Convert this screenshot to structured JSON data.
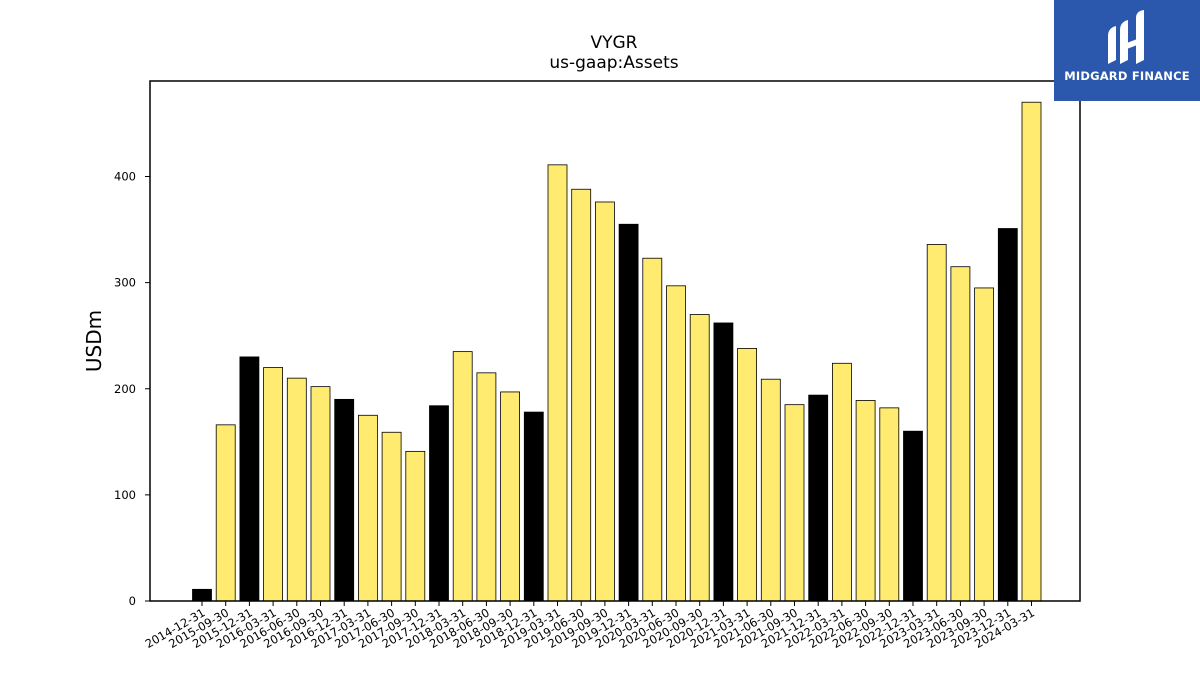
{
  "brand": {
    "name": "MIDGARD FINANCE",
    "bg_color": "#2b58ad"
  },
  "chart_data": {
    "type": "bar",
    "title": "VYGR",
    "subtitle": "us-gaap:Assets",
    "xlabel": "",
    "ylabel": "USDm",
    "ylim": [
      0,
      490
    ],
    "yticks": [
      0,
      100,
      200,
      300,
      400
    ],
    "grid": false,
    "legend": "none",
    "colors": {
      "annual": "#000000",
      "quarterly": "#ffeb70",
      "edge": "#000000"
    },
    "categories": [
      "2014-12-31",
      "2015-09-30",
      "2015-12-31",
      "2016-03-31",
      "2016-06-30",
      "2016-09-30",
      "2016-12-31",
      "2017-03-31",
      "2017-06-30",
      "2017-09-30",
      "2017-12-31",
      "2018-03-31",
      "2018-06-30",
      "2018-09-30",
      "2018-12-31",
      "2019-03-31",
      "2019-06-30",
      "2019-09-30",
      "2019-12-31",
      "2020-03-31",
      "2020-06-30",
      "2020-09-30",
      "2020-12-31",
      "2021-03-31",
      "2021-06-30",
      "2021-09-30",
      "2021-12-31",
      "2022-03-31",
      "2022-06-30",
      "2022-09-30",
      "2022-12-31",
      "2023-03-31",
      "2023-06-30",
      "2023-09-30",
      "2023-12-31",
      "2024-03-31"
    ],
    "values": [
      11,
      166,
      230,
      220,
      210,
      202,
      190,
      175,
      159,
      141,
      184,
      235,
      215,
      197,
      178,
      411,
      388,
      376,
      355,
      323,
      297,
      270,
      262,
      238,
      209,
      185,
      194,
      224,
      189,
      182,
      160,
      336,
      315,
      295,
      351,
      470
    ],
    "annual_flags": [
      1,
      0,
      1,
      0,
      0,
      0,
      1,
      0,
      0,
      0,
      1,
      0,
      0,
      0,
      1,
      0,
      0,
      0,
      1,
      0,
      0,
      0,
      1,
      0,
      0,
      0,
      1,
      0,
      0,
      0,
      1,
      0,
      0,
      0,
      1,
      0
    ]
  }
}
